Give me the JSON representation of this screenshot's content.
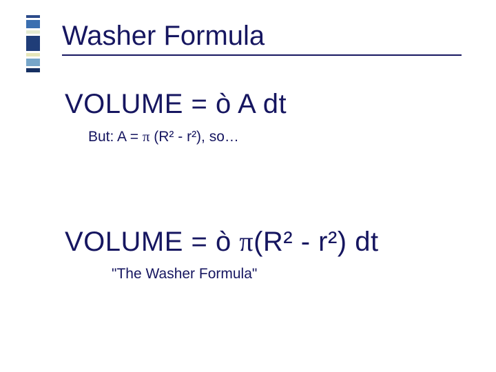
{
  "accent": {
    "blocks": [
      {
        "color": "#2b4a8a",
        "h": 4
      },
      {
        "color": "#3b6fb0",
        "h": 12
      },
      {
        "color": "#e3ead1",
        "h": 5
      },
      {
        "color": "#1f3d78",
        "h": 22
      },
      {
        "color": "#e6e6b9",
        "h": 5
      },
      {
        "color": "#77a6c9",
        "h": 11
      },
      {
        "color": "#163062",
        "h": 6
      }
    ]
  },
  "title": "Washer Formula",
  "formula1": {
    "lhs": "VOLUME = ",
    "integral": "ò",
    "rhs": " A dt"
  },
  "note": {
    "pre": "But: A = ",
    "pi": "π",
    "post": " (R² - r²), so…"
  },
  "formula2": {
    "lhs": "VOLUME = ",
    "integral": "ò",
    "mid": " ",
    "pi": "π",
    "rhs": "(R² - r²) dt"
  },
  "tagline": "\"The Washer Formula\"",
  "colors": {
    "text": "#161660",
    "background": "#ffffff"
  },
  "fonts": {
    "family": "Comic Sans MS",
    "title_size": 40,
    "formula_size": 40,
    "note_size": 21
  }
}
